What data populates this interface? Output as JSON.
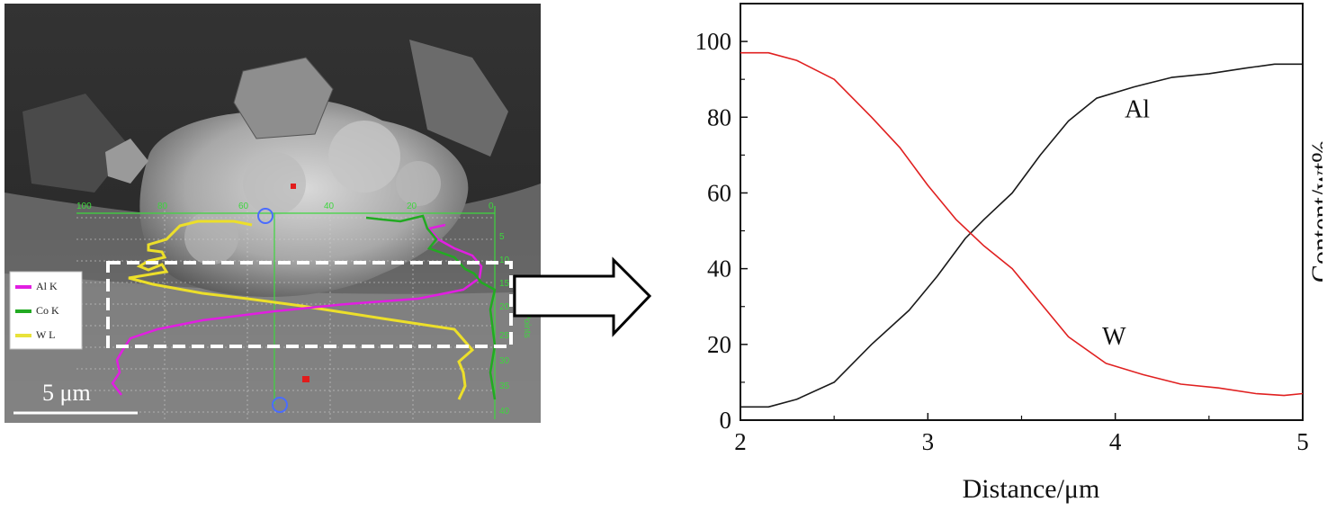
{
  "sem_image": {
    "scale_bar_label": "5 μm",
    "legend": [
      {
        "label": "Al K",
        "color": "#e11ee1"
      },
      {
        "label": "Co K",
        "color": "#22aa22"
      },
      {
        "label": "W L",
        "color": "#e8e23a"
      }
    ],
    "top_axis_ticks": [
      "100",
      "80",
      "60",
      "40",
      "20",
      "0"
    ],
    "right_axis_ticks": [
      "5",
      "10",
      "15",
      "20",
      "25",
      "30",
      "35",
      "40"
    ],
    "right_axis_title": "Data Points"
  },
  "chart_data": {
    "type": "line",
    "xlabel": "Distance/μm",
    "ylabel": "Content/wt%",
    "xlim": [
      2,
      5
    ],
    "ylim": [
      0,
      110
    ],
    "x_ticks": [
      "2",
      "3",
      "4",
      "5"
    ],
    "y_ticks": [
      "0",
      "20",
      "40",
      "60",
      "80",
      "100"
    ],
    "series": [
      {
        "name": "Al",
        "color": "#1a1a1a",
        "x": [
          2.0,
          2.15,
          2.3,
          2.5,
          2.7,
          2.9,
          3.05,
          3.2,
          3.3,
          3.45,
          3.6,
          3.75,
          3.9,
          4.1,
          4.3,
          4.5,
          4.7,
          4.85,
          5.0
        ],
        "y": [
          3.5,
          3.5,
          5.5,
          10,
          20,
          29,
          38,
          48,
          53,
          60,
          70,
          79,
          85,
          88,
          90.5,
          91.5,
          93,
          94,
          94
        ]
      },
      {
        "name": "W",
        "color": "#e02020",
        "x": [
          2.0,
          2.15,
          2.3,
          2.5,
          2.7,
          2.85,
          3.0,
          3.15,
          3.3,
          3.45,
          3.6,
          3.75,
          3.95,
          4.15,
          4.35,
          4.55,
          4.75,
          4.9,
          5.0
        ],
        "y": [
          97,
          97,
          95,
          90,
          80,
          72,
          62,
          53,
          46,
          40,
          31,
          22,
          15,
          12,
          9.5,
          8.5,
          7,
          6.5,
          7
        ]
      }
    ],
    "annotations": [
      {
        "text": "Al",
        "x": 4.05,
        "y": 80
      },
      {
        "text": "W",
        "x": 3.93,
        "y": 20
      }
    ]
  }
}
